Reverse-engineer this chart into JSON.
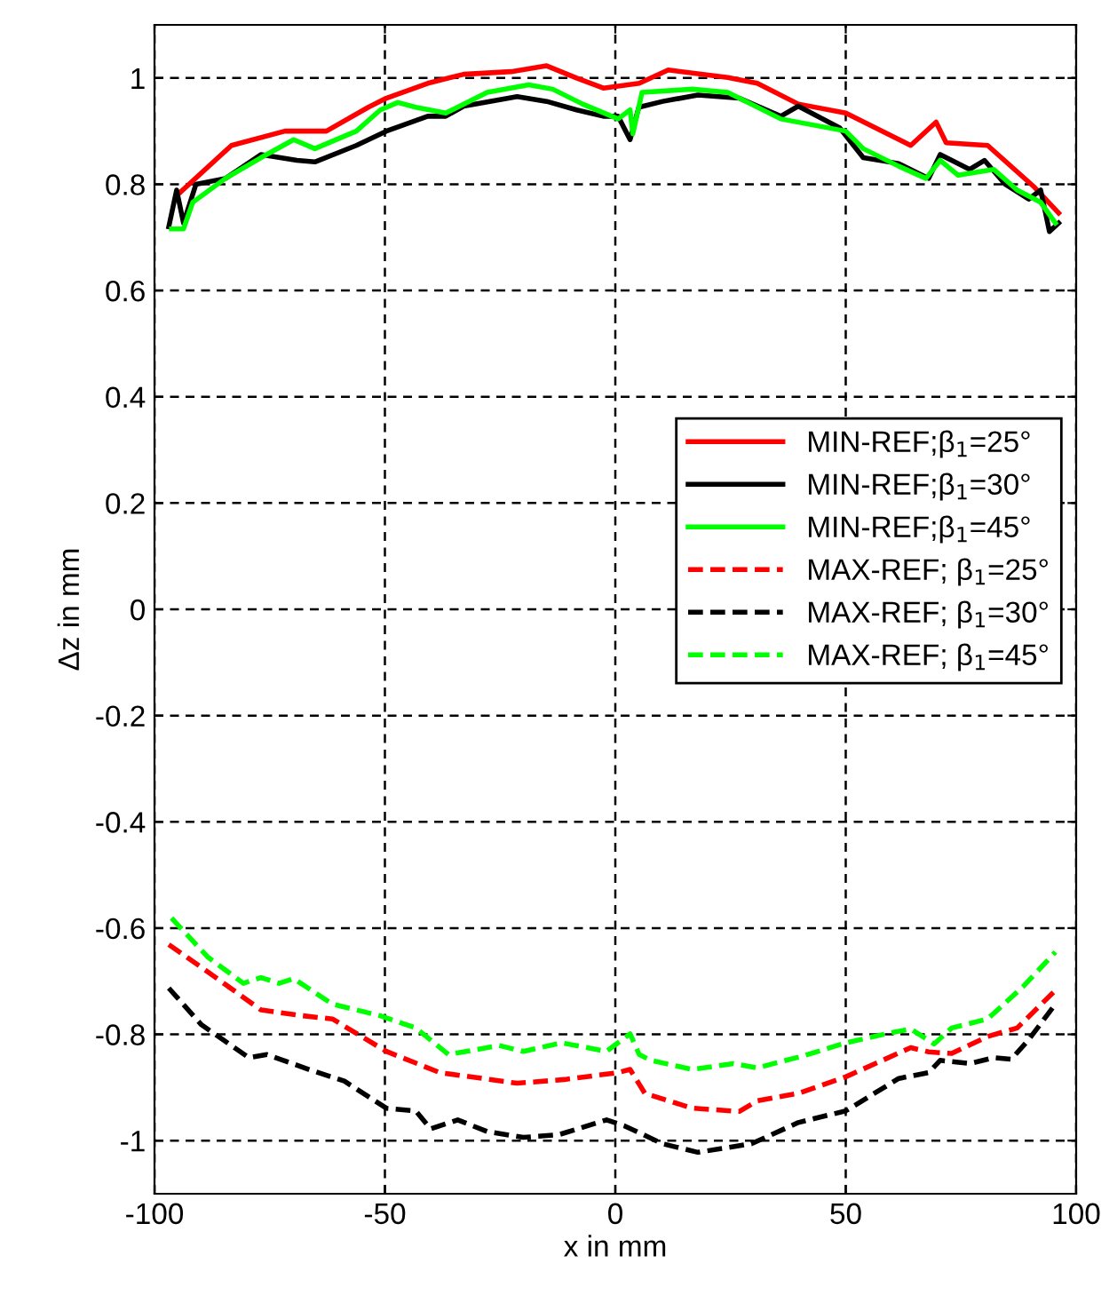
{
  "chart_data": {
    "type": "line",
    "xlabel": "x in mm",
    "ylabel": "Δz in mm",
    "xlim": [
      -100,
      100
    ],
    "ylim": [
      -1.1,
      1.1
    ],
    "xticks": [
      -100,
      -50,
      0,
      50,
      100
    ],
    "yticks": [
      -1,
      -0.8,
      -0.6,
      -0.4,
      -0.2,
      0,
      0.2,
      0.4,
      0.6,
      0.8,
      1
    ],
    "grid": true,
    "legend": "right",
    "series": [
      {
        "name": "MIN-REF;β$_{1}$=25°",
        "color": "#ff0000",
        "line_style": "solid",
        "x": [
          -95,
          -83.3,
          -71.7,
          -62.7,
          -53.6,
          -49.7,
          -40.7,
          -32.9,
          -22.6,
          -14.9,
          -8.4,
          -2.6,
          5.2,
          11.5,
          24.4,
          30.8,
          39.7,
          50,
          64.1,
          69.6,
          71.8,
          80.8,
          91,
          96.2
        ],
        "values": [
          0.78,
          0.873,
          0.9,
          0.9,
          0.945,
          0.962,
          0.99,
          1.007,
          1.012,
          1.023,
          1.0,
          0.981,
          0.99,
          1.015,
          1.001,
          0.99,
          0.951,
          0.934,
          0.873,
          0.917,
          0.878,
          0.873,
          0.794,
          0.746
        ]
      },
      {
        "name": "MIN-REF;β$_{1}$=30°",
        "color": "#000000",
        "line_style": "solid",
        "x": [
          -96.9,
          -95.2,
          -93.7,
          -91,
          -84.6,
          -76.9,
          -69.1,
          -65.2,
          -56.2,
          -49.7,
          -40.7,
          -36.8,
          -32.9,
          -21.3,
          -14.9,
          -8.4,
          -2.6,
          0.6,
          3.2,
          5.1,
          10.3,
          17.9,
          26.9,
          35.9,
          39.7,
          48.7,
          53.8,
          61.5,
          68,
          70.5,
          76.9,
          80.1,
          84.6,
          89.7,
          92.3,
          94.2,
          96.2
        ],
        "values": [
          0.72,
          0.789,
          0.727,
          0.8,
          0.811,
          0.856,
          0.845,
          0.842,
          0.873,
          0.9,
          0.928,
          0.928,
          0.947,
          0.965,
          0.956,
          0.94,
          0.928,
          0.928,
          0.884,
          0.945,
          0.956,
          0.968,
          0.962,
          0.928,
          0.947,
          0.906,
          0.85,
          0.839,
          0.811,
          0.856,
          0.828,
          0.845,
          0.8,
          0.772,
          0.789,
          0.711,
          0.727
        ]
      },
      {
        "name": "MIN-REF;β$_{1}$=45°",
        "color": "#00ff00",
        "line_style": "solid",
        "x": [
          -96.3,
          -93.7,
          -91.7,
          -84.6,
          -76.9,
          -69.8,
          -65.2,
          -56.2,
          -51,
          -47.2,
          -43.3,
          -36.8,
          -27.8,
          -18.8,
          -13.6,
          -7.1,
          0.6,
          3.2,
          3.8,
          5.8,
          16.7,
          24.4,
          35.9,
          50,
          53.8,
          61.5,
          67.4,
          70.5,
          74.4,
          82.1,
          87.2,
          92.3,
          95.5
        ],
        "values": [
          0.716,
          0.716,
          0.766,
          0.811,
          0.85,
          0.884,
          0.867,
          0.9,
          0.94,
          0.954,
          0.945,
          0.934,
          0.973,
          0.987,
          0.979,
          0.951,
          0.923,
          0.94,
          0.895,
          0.973,
          0.979,
          0.973,
          0.923,
          0.9,
          0.867,
          0.834,
          0.811,
          0.845,
          0.817,
          0.828,
          0.789,
          0.766,
          0.727
        ]
      },
      {
        "name": "MAX-REF; β$_{1}$=25°",
        "color": "#ff0000",
        "line_style": "dashed",
        "x": [
          -96.9,
          -88.5,
          -76.9,
          -67.8,
          -61.4,
          -49.7,
          -38.1,
          -21.3,
          -11,
          0.6,
          3.2,
          6.4,
          16.7,
          26.9,
          30.8,
          39.7,
          50,
          64.1,
          68,
          73,
          80.8,
          87.2,
          95.5
        ],
        "values": [
          -0.631,
          -0.682,
          -0.754,
          -0.765,
          -0.771,
          -0.832,
          -0.872,
          -0.892,
          -0.885,
          -0.872,
          -0.866,
          -0.911,
          -0.939,
          -0.945,
          -0.925,
          -0.911,
          -0.88,
          -0.825,
          -0.833,
          -0.836,
          -0.804,
          -0.788,
          -0.717
        ]
      },
      {
        "name": "MAX-REF; β$_{1}$=30°",
        "color": "#000000",
        "line_style": "dashed",
        "x": [
          -96.9,
          -89.8,
          -79.5,
          -75.6,
          -66.5,
          -58.8,
          -49.7,
          -43.3,
          -40.1,
          -34.2,
          -27.8,
          -20,
          -12.3,
          -1.9,
          1.9,
          10.3,
          17.9,
          29.5,
          39.7,
          50,
          61.5,
          68,
          70.5,
          76.9,
          82.1,
          85.9,
          89.7,
          95.5
        ],
        "values": [
          -0.713,
          -0.782,
          -0.844,
          -0.838,
          -0.866,
          -0.888,
          -0.939,
          -0.944,
          -0.978,
          -0.961,
          -0.983,
          -0.994,
          -0.989,
          -0.961,
          -0.972,
          -1.006,
          -1.022,
          -1.006,
          -0.966,
          -0.944,
          -0.883,
          -0.872,
          -0.849,
          -0.855,
          -0.844,
          -0.847,
          -0.81,
          -0.743
        ]
      },
      {
        "name": "MAX-REF; β$_{1}$=45°",
        "color": "#00ff00",
        "line_style": "dashed",
        "x": [
          -96.3,
          -88.5,
          -80.7,
          -76.9,
          -73,
          -69.8,
          -61.4,
          -51,
          -43.3,
          -36.2,
          -25.2,
          -20,
          -11.6,
          -1.9,
          3.2,
          5.2,
          7.7,
          16.7,
          25.6,
          30.8,
          41,
          50,
          60.3,
          64.1,
          69.2,
          73,
          80.8,
          88.5,
          95.5
        ],
        "values": [
          -0.581,
          -0.654,
          -0.704,
          -0.693,
          -0.704,
          -0.695,
          -0.743,
          -0.765,
          -0.788,
          -0.838,
          -0.821,
          -0.832,
          -0.816,
          -0.832,
          -0.799,
          -0.838,
          -0.849,
          -0.866,
          -0.855,
          -0.863,
          -0.84,
          -0.816,
          -0.796,
          -0.79,
          -0.818,
          -0.788,
          -0.771,
          -0.71,
          -0.645
        ]
      }
    ]
  }
}
